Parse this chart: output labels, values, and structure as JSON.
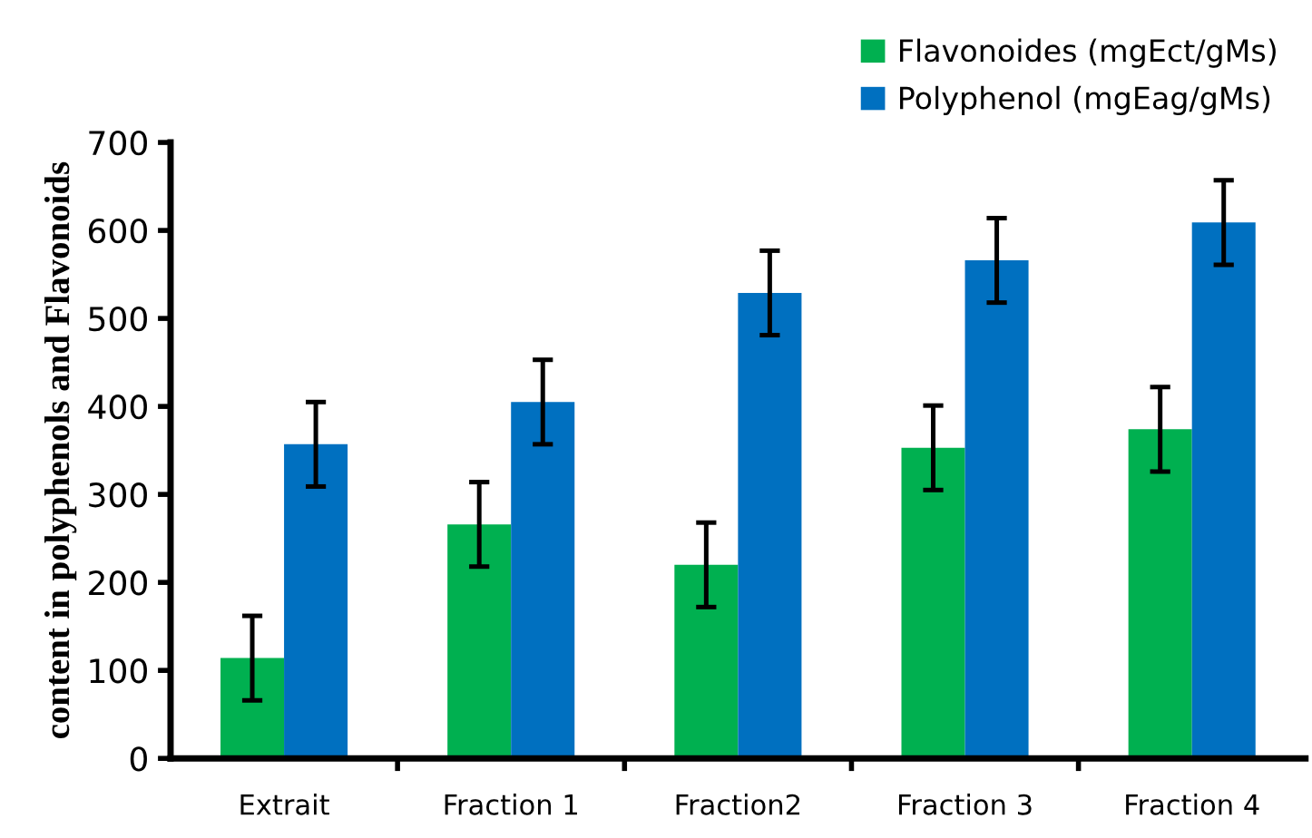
{
  "chart_data": {
    "type": "bar",
    "ylabel": "content in polyphenols and Flavonoids",
    "categories": [
      "Extrait",
      "Fraction 1",
      "Fraction2",
      "Fraction 3",
      "Fraction 4"
    ],
    "series": [
      {
        "name": "Flavonoides (mgEct/gMs)",
        "color": "#00b050",
        "values": [
          114,
          266,
          220,
          353,
          374
        ],
        "errors": [
          48,
          48,
          48,
          48,
          48
        ]
      },
      {
        "name": "Polyphenol (mgEag/gMs)",
        "color": "#0070c0",
        "values": [
          357,
          405,
          529,
          566,
          609
        ],
        "errors": [
          48,
          48,
          48,
          48,
          48
        ]
      }
    ],
    "ylim": [
      0,
      700
    ],
    "yticks": [
      0,
      100,
      200,
      300,
      400,
      500,
      600,
      700
    ],
    "grid": false,
    "legend": "top right"
  }
}
